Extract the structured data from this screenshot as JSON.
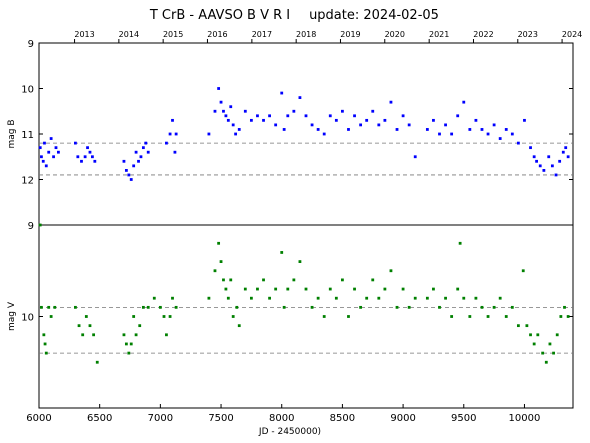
{
  "chart_data": {
    "type": "scatter",
    "title": "T CrB - AAVSO B V R I",
    "update": "update: 2024-02-05",
    "xlabel": "JD - 2450000)",
    "xlim": [
      6000,
      10400
    ],
    "x_ticks": [
      6000,
      6500,
      7000,
      7500,
      8000,
      8500,
      9000,
      9500,
      10000
    ],
    "top_axis_years": [
      {
        "label": "2013",
        "jd": 6293
      },
      {
        "label": "2014",
        "jd": 6658
      },
      {
        "label": "2015",
        "jd": 7023
      },
      {
        "label": "2016",
        "jd": 7388
      },
      {
        "label": "2017",
        "jd": 7754
      },
      {
        "label": "2018",
        "jd": 8119
      },
      {
        "label": "2019",
        "jd": 8484
      },
      {
        "label": "2020",
        "jd": 8849
      },
      {
        "label": "2021",
        "jd": 9215
      },
      {
        "label": "2022",
        "jd": 9580
      },
      {
        "label": "2023",
        "jd": 9945
      },
      {
        "label": "2024",
        "jd": 10310
      }
    ],
    "panels": [
      {
        "id": "B",
        "ylabel": "mag B",
        "ylim": [
          13,
          9
        ],
        "y_ticks": [
          9,
          10,
          11,
          12
        ],
        "color": "#0000ff",
        "reference_lines": [
          11.2,
          11.9
        ],
        "series": [
          {
            "name": "B",
            "points": [
              [
                6010,
                11.3
              ],
              [
                6020,
                11.5
              ],
              [
                6035,
                11.6
              ],
              [
                6045,
                11.2
              ],
              [
                6060,
                11.7
              ],
              [
                6080,
                11.4
              ],
              [
                6100,
                11.1
              ],
              [
                6120,
                11.5
              ],
              [
                6140,
                11.3
              ],
              [
                6160,
                11.4
              ],
              [
                6300,
                11.2
              ],
              [
                6320,
                11.5
              ],
              [
                6350,
                11.6
              ],
              [
                6380,
                11.5
              ],
              [
                6400,
                11.3
              ],
              [
                6420,
                11.4
              ],
              [
                6440,
                11.5
              ],
              [
                6460,
                11.6
              ],
              [
                6700,
                11.6
              ],
              [
                6720,
                11.8
              ],
              [
                6740,
                11.9
              ],
              [
                6760,
                12.0
              ],
              [
                6780,
                11.7
              ],
              [
                6800,
                11.4
              ],
              [
                6820,
                11.6
              ],
              [
                6840,
                11.5
              ],
              [
                6860,
                11.3
              ],
              [
                6880,
                11.2
              ],
              [
                6900,
                11.4
              ],
              [
                7050,
                11.2
              ],
              [
                7080,
                11.0
              ],
              [
                7100,
                10.7
              ],
              [
                7120,
                11.4
              ],
              [
                7130,
                11.0
              ],
              [
                7400,
                11.0
              ],
              [
                7450,
                10.5
              ],
              [
                7480,
                10.0
              ],
              [
                7500,
                10.3
              ],
              [
                7520,
                10.5
              ],
              [
                7540,
                10.6
              ],
              [
                7560,
                10.7
              ],
              [
                7580,
                10.4
              ],
              [
                7600,
                10.8
              ],
              [
                7620,
                11.0
              ],
              [
                7650,
                10.9
              ],
              [
                7700,
                10.5
              ],
              [
                7750,
                10.7
              ],
              [
                7800,
                10.6
              ],
              [
                7850,
                10.7
              ],
              [
                7900,
                10.6
              ],
              [
                7950,
                10.8
              ],
              [
                8000,
                10.1
              ],
              [
                8020,
                10.9
              ],
              [
                8050,
                10.6
              ],
              [
                8100,
                10.5
              ],
              [
                8150,
                10.2
              ],
              [
                8200,
                10.6
              ],
              [
                8250,
                10.8
              ],
              [
                8300,
                10.9
              ],
              [
                8350,
                11.0
              ],
              [
                8400,
                10.6
              ],
              [
                8450,
                10.7
              ],
              [
                8500,
                10.5
              ],
              [
                8550,
                10.9
              ],
              [
                8600,
                10.6
              ],
              [
                8650,
                10.8
              ],
              [
                8700,
                10.7
              ],
              [
                8750,
                10.5
              ],
              [
                8800,
                10.8
              ],
              [
                8850,
                10.7
              ],
              [
                8900,
                10.3
              ],
              [
                8950,
                10.9
              ],
              [
                9000,
                10.6
              ],
              [
                9050,
                10.8
              ],
              [
                9100,
                11.5
              ],
              [
                9200,
                10.9
              ],
              [
                9250,
                10.7
              ],
              [
                9300,
                11.0
              ],
              [
                9350,
                10.8
              ],
              [
                9400,
                11.0
              ],
              [
                9450,
                10.6
              ],
              [
                9500,
                10.3
              ],
              [
                9550,
                10.9
              ],
              [
                9600,
                10.7
              ],
              [
                9650,
                10.9
              ],
              [
                9700,
                11.0
              ],
              [
                9750,
                10.8
              ],
              [
                9800,
                11.1
              ],
              [
                9850,
                10.9
              ],
              [
                9900,
                11.0
              ],
              [
                9950,
                11.2
              ],
              [
                10000,
                10.7
              ],
              [
                10050,
                11.3
              ],
              [
                10080,
                11.5
              ],
              [
                10100,
                11.6
              ],
              [
                10130,
                11.7
              ],
              [
                10160,
                11.8
              ],
              [
                10200,
                11.5
              ],
              [
                10230,
                11.7
              ],
              [
                10260,
                11.9
              ],
              [
                10290,
                11.6
              ],
              [
                10320,
                11.4
              ],
              [
                10340,
                11.3
              ],
              [
                10360,
                11.5
              ]
            ]
          }
        ]
      },
      {
        "id": "V",
        "ylabel": "mag V",
        "ylim": [
          11,
          9
        ],
        "y_ticks": [
          9,
          10
        ],
        "color": "#008000",
        "reference_lines": [
          9.9,
          10.4
        ],
        "series": [
          {
            "name": "V",
            "points": [
              [
                6010,
                9.0
              ],
              [
                6020,
                9.9
              ],
              [
                6040,
                10.2
              ],
              [
                6050,
                10.3
              ],
              [
                6060,
                10.4
              ],
              [
                6080,
                9.9
              ],
              [
                6100,
                10.0
              ],
              [
                6130,
                9.9
              ],
              [
                6300,
                9.9
              ],
              [
                6330,
                10.1
              ],
              [
                6360,
                10.2
              ],
              [
                6390,
                10.0
              ],
              [
                6420,
                10.1
              ],
              [
                6450,
                10.2
              ],
              [
                6480,
                10.5
              ],
              [
                6700,
                10.2
              ],
              [
                6720,
                10.3
              ],
              [
                6740,
                10.4
              ],
              [
                6760,
                10.3
              ],
              [
                6780,
                10.0
              ],
              [
                6800,
                10.2
              ],
              [
                6830,
                10.1
              ],
              [
                6860,
                9.9
              ],
              [
                6900,
                9.9
              ],
              [
                6950,
                9.8
              ],
              [
                7000,
                9.9
              ],
              [
                7030,
                10.0
              ],
              [
                7050,
                10.2
              ],
              [
                7080,
                10.0
              ],
              [
                7100,
                9.8
              ],
              [
                7130,
                9.9
              ],
              [
                7400,
                9.8
              ],
              [
                7450,
                9.5
              ],
              [
                7480,
                9.2
              ],
              [
                7500,
                9.4
              ],
              [
                7520,
                9.6
              ],
              [
                7540,
                9.7
              ],
              [
                7560,
                9.8
              ],
              [
                7580,
                9.6
              ],
              [
                7600,
                10.0
              ],
              [
                7630,
                9.9
              ],
              [
                7650,
                10.1
              ],
              [
                7700,
                9.7
              ],
              [
                7750,
                9.8
              ],
              [
                7800,
                9.7
              ],
              [
                7850,
                9.6
              ],
              [
                7900,
                9.8
              ],
              [
                7950,
                9.7
              ],
              [
                8000,
                9.3
              ],
              [
                8020,
                9.9
              ],
              [
                8050,
                9.7
              ],
              [
                8100,
                9.6
              ],
              [
                8150,
                9.4
              ],
              [
                8200,
                9.7
              ],
              [
                8250,
                9.9
              ],
              [
                8300,
                9.8
              ],
              [
                8350,
                10.0
              ],
              [
                8400,
                9.7
              ],
              [
                8450,
                9.8
              ],
              [
                8500,
                9.6
              ],
              [
                8550,
                10.0
              ],
              [
                8600,
                9.7
              ],
              [
                8650,
                9.9
              ],
              [
                8700,
                9.8
              ],
              [
                8750,
                9.6
              ],
              [
                8800,
                9.8
              ],
              [
                8850,
                9.7
              ],
              [
                8900,
                9.5
              ],
              [
                8950,
                9.9
              ],
              [
                9000,
                9.7
              ],
              [
                9050,
                9.9
              ],
              [
                9100,
                9.8
              ],
              [
                9200,
                9.8
              ],
              [
                9250,
                9.7
              ],
              [
                9300,
                9.9
              ],
              [
                9350,
                9.8
              ],
              [
                9400,
                10.0
              ],
              [
                9450,
                9.7
              ],
              [
                9470,
                9.2
              ],
              [
                9500,
                9.8
              ],
              [
                9550,
                10.0
              ],
              [
                9600,
                9.8
              ],
              [
                9650,
                9.9
              ],
              [
                9700,
                10.0
              ],
              [
                9750,
                9.9
              ],
              [
                9800,
                9.8
              ],
              [
                9850,
                10.0
              ],
              [
                9900,
                9.9
              ],
              [
                9950,
                10.1
              ],
              [
                9990,
                9.5
              ],
              [
                10020,
                10.1
              ],
              [
                10050,
                10.2
              ],
              [
                10080,
                10.3
              ],
              [
                10110,
                10.2
              ],
              [
                10150,
                10.4
              ],
              [
                10180,
                10.5
              ],
              [
                10210,
                10.3
              ],
              [
                10240,
                10.4
              ],
              [
                10270,
                10.2
              ],
              [
                10300,
                10.0
              ],
              [
                10330,
                9.9
              ],
              [
                10360,
                10.0
              ]
            ]
          }
        ]
      }
    ]
  }
}
